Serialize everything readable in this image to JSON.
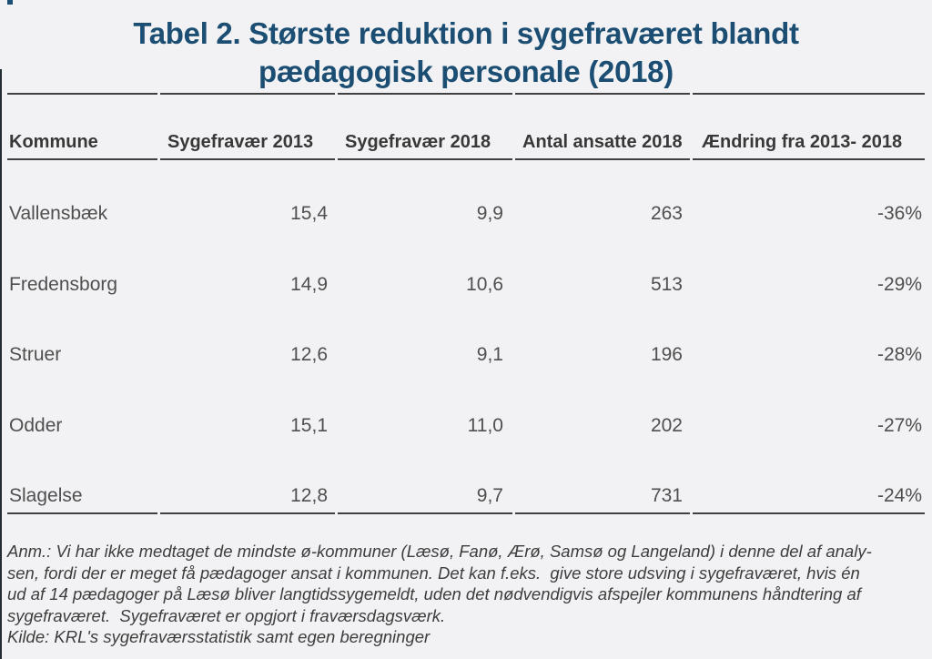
{
  "theme": {
    "bg": "#f2f2f4",
    "title-color": "#1b4e72",
    "header-text": "#383838",
    "body-text": "#4f4f4f",
    "note-text": "#3d3d3d",
    "rule-color": "#404040",
    "edge-color": "#232b33"
  },
  "title": {
    "line1": "Tabel 2. Største reduktion i sygefraværet blandt",
    "line2": "pædagogisk personale (2018)"
  },
  "table": {
    "headers": [
      {
        "lines": [
          "Kommune"
        ]
      },
      {
        "lines": [
          "Sygefravær",
          "2013"
        ]
      },
      {
        "lines": [
          "Sygefravær",
          "2018"
        ]
      },
      {
        "lines": [
          "Antal ansatte",
          "2018"
        ]
      },
      {
        "lines": [
          "Ændring fra 2013-",
          "2018"
        ]
      }
    ],
    "rows": [
      {
        "kommune": "Vallensbæk",
        "sygefravaer_2013": "15,4",
        "sygefravaer_2018": "9,9",
        "antal_ansatte_2018": "263",
        "aendring": "-36%"
      },
      {
        "kommune": "Fredensborg",
        "sygefravaer_2013": "14,9",
        "sygefravaer_2018": "10,6",
        "antal_ansatte_2018": "513",
        "aendring": "-29%"
      },
      {
        "kommune": "Struer",
        "sygefravaer_2013": "12,6",
        "sygefravaer_2018": "9,1",
        "antal_ansatte_2018": "196",
        "aendring": "-28%"
      },
      {
        "kommune": "Odder",
        "sygefravaer_2013": "15,1",
        "sygefravaer_2018": "11,0",
        "antal_ansatte_2018": "202",
        "aendring": "-27%"
      },
      {
        "kommune": "Slagelse",
        "sygefravaer_2013": "12,8",
        "sygefravaer_2018": "9,7",
        "antal_ansatte_2018": "731",
        "aendring": "-24%"
      }
    ]
  },
  "notes": {
    "lines": [
      "Anm.: Vi har ikke medtaget de mindste ø-kommuner (Læsø, Fanø, Ærø, Samsø og Langeland) i denne del af analy-",
      "sen, fordi der er meget få pædagoger ansat i kommunen. Det kan f.eks.  give store udsving i sygefraværet, hvis én",
      "ud af 14 pædagoger på Læsø bliver langtidssygemeldt, uden det nødvendigvis afspejler kommunens håndtering af",
      "sygefraværet.  Sygefraværet er opgjort i fraværsdagsværk."
    ],
    "source": "Kilde: KRL's sygefraværsstatistik samt egen beregninger"
  },
  "chart_data": {
    "type": "table",
    "title": "Tabel 2. Største reduktion i sygefraværet blandt pædagogisk personale (2018)",
    "columns": [
      "Kommune",
      "Sygefravær 2013",
      "Sygefravær 2018",
      "Antal ansatte 2018",
      "Ændring fra 2013-2018"
    ],
    "rows": [
      [
        "Vallensbæk",
        15.4,
        9.9,
        263,
        "-36%"
      ],
      [
        "Fredensborg",
        14.9,
        10.6,
        513,
        "-29%"
      ],
      [
        "Struer",
        12.6,
        9.1,
        196,
        "-28%"
      ],
      [
        "Odder",
        15.1,
        11.0,
        202,
        "-27%"
      ],
      [
        "Slagelse",
        12.8,
        9.7,
        731,
        "-24%"
      ]
    ],
    "annotation": "Anm.: Vi har ikke medtaget de mindste ø-kommuner (Læsø, Fanø, Ærø, Samsø og Langeland) i denne del af analysen, fordi der er meget få pædagoger ansat i kommunen. Det kan f.eks. give store udsving i sygefraværet, hvis én ud af 14 pædagoger på Læsø bliver langtidssygemeldt, uden det nødvendigvis afspejler kommunens håndtering af sygefraværet. Sygefraværet er opgjort i fraværsdagsværk.",
    "source": "Kilde: KRL's sygefraværsstatistik samt egen beregninger"
  }
}
